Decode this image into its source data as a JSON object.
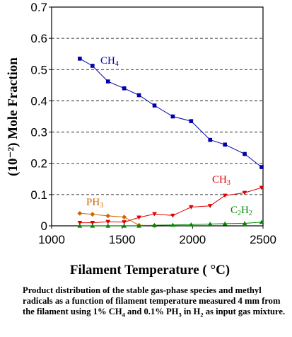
{
  "chart_data": {
    "type": "line",
    "title": "",
    "xlabel": "Filament Temperature ( °C)",
    "ylabel": "(10⁻²) Mole Fraction",
    "xlim": [
      1000,
      2500
    ],
    "ylim": [
      0,
      0.7
    ],
    "x_ticks": [
      "1000",
      "1500",
      "2000",
      "2500"
    ],
    "y_ticks": [
      "0",
      "0.1",
      "0.2",
      "0.3",
      "0.4",
      "0.5",
      "0.6",
      "0.7"
    ],
    "grid": "horizontal dashed",
    "legend": "none (series labelled on plot)",
    "series": [
      {
        "name": "CH4",
        "label_main": "CH",
        "label_sub": "4",
        "color": "#0000aa",
        "marker": "square",
        "x": [
          1200,
          1290,
          1400,
          1515,
          1620,
          1730,
          1860,
          1990,
          2125,
          2230,
          2370,
          2490
        ],
        "y": [
          0.535,
          0.512,
          0.462,
          0.44,
          0.418,
          0.385,
          0.35,
          0.335,
          0.275,
          0.26,
          0.23,
          0.188
        ]
      },
      {
        "name": "CH3",
        "label_main": "CH",
        "label_sub": "3",
        "color": "#dd0000",
        "marker": "triangle-down",
        "x": [
          1200,
          1290,
          1400,
          1515,
          1620,
          1730,
          1860,
          1990,
          2125,
          2230,
          2370,
          2490
        ],
        "y": [
          0.01,
          0.01,
          0.013,
          0.012,
          0.027,
          0.038,
          0.033,
          0.06,
          0.064,
          0.097,
          0.106,
          0.122
        ]
      },
      {
        "name": "PH3",
        "label_main": "PH",
        "label_sub": "3",
        "color": "#cc6600",
        "marker": "diamond",
        "x": [
          1200,
          1290,
          1400,
          1515,
          1620,
          1730
        ],
        "y": [
          0.04,
          0.037,
          0.032,
          0.028,
          0.002,
          0.001
        ]
      },
      {
        "name": "C2H2",
        "label_main": "C",
        "label_mid": "2",
        "label_end": "H",
        "label_sub": "2",
        "color": "#008800",
        "marker": "triangle-up",
        "x": [
          1200,
          1290,
          1400,
          1515,
          1620,
          1730,
          1860,
          1990,
          2125,
          2230,
          2370,
          2490
        ],
        "y": [
          0.0,
          0.0,
          0.0,
          0.0,
          0.0,
          0.002,
          0.003,
          0.004,
          0.006,
          0.007,
          0.008,
          0.012
        ]
      }
    ]
  },
  "caption": {
    "p1": "Product distribution of the  stable gas-phase species and methyl radicals as a function of filament temperature measured 4 mm from the filament using 1% CH",
    "s1": "4",
    "p2": " and 0.1% PH",
    "s2": "3",
    "p3": " in H",
    "s3": "2",
    "p4": " as input gas mixture."
  }
}
